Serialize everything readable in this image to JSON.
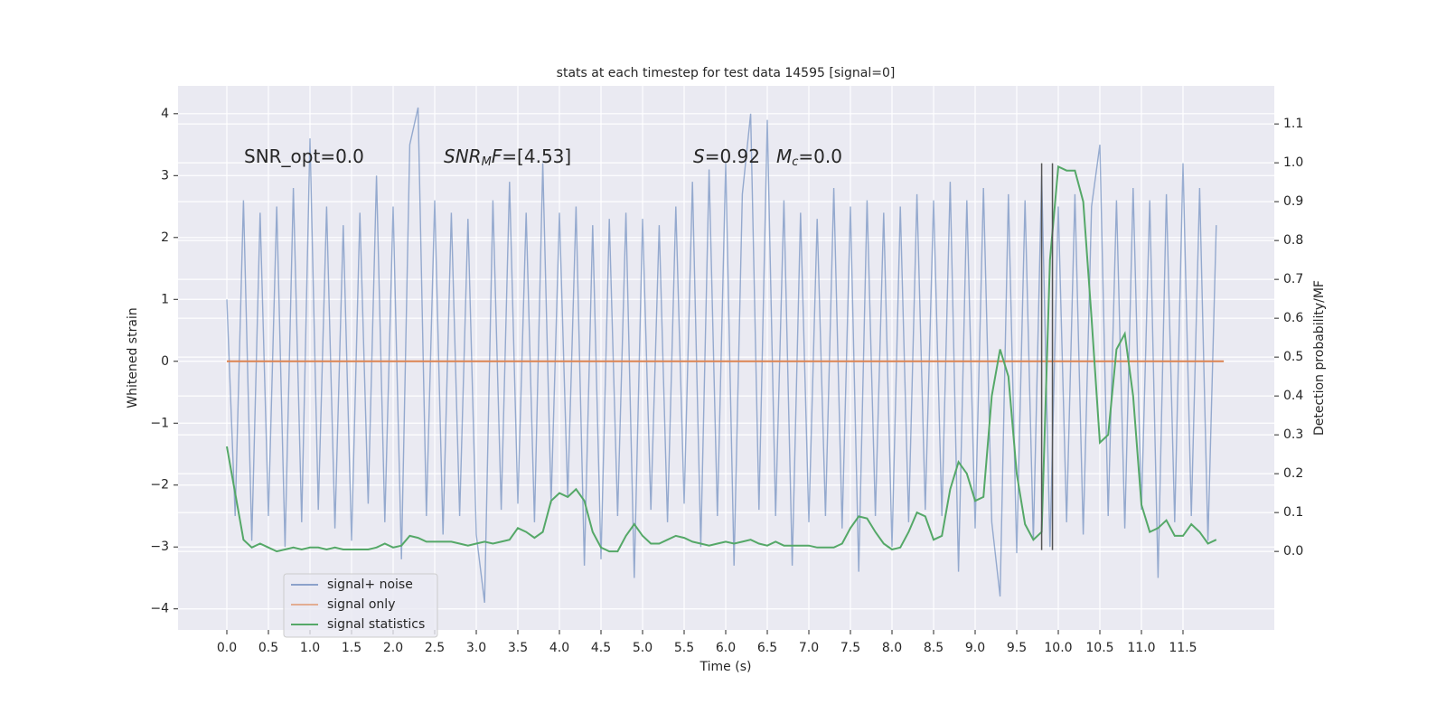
{
  "chart_data": {
    "type": "line",
    "title": "stats at each timestep for test data 14595 [signal=0]",
    "xlabel": "Time (s)",
    "ylabel": "Whitened strain",
    "y2label": "Detection probability/MF",
    "xlim": [
      -0.587,
      12.598
    ],
    "ylim": [
      -4.34,
      4.45
    ],
    "y2lim": [
      -0.202,
      1.198
    ],
    "xticks": [
      {
        "value": 0,
        "label": "0.0"
      },
      0.5,
      {
        "value": 1,
        "label": "1.0"
      },
      1.5,
      {
        "value": 2,
        "label": "2.0"
      },
      2.5,
      {
        "value": 3,
        "label": "3.0"
      },
      3.5,
      {
        "value": 4,
        "label": "4.0"
      },
      4.5,
      {
        "value": 5,
        "label": "5.0"
      },
      5.5,
      {
        "value": 6,
        "label": "6.0"
      },
      6.5,
      {
        "value": 7,
        "label": "7.0"
      },
      7.5,
      {
        "value": 8,
        "label": "8.0"
      },
      8.5,
      {
        "value": 9,
        "label": "9.0"
      },
      9.5,
      {
        "value": 10,
        "label": "10.0"
      },
      10.5,
      {
        "value": 11,
        "label": "11.0"
      },
      11.5
    ],
    "yticks": [
      {
        "value": -4,
        "label": "−4"
      },
      {
        "value": -3,
        "label": "−3"
      },
      {
        "value": -2,
        "label": "−2"
      },
      {
        "value": -1,
        "label": "−1"
      },
      0,
      1,
      2,
      3,
      4
    ],
    "y2ticks": [
      {
        "value": 0,
        "label": "0.0"
      },
      0.1,
      0.2,
      0.3,
      0.4,
      0.5,
      0.6,
      0.7,
      0.8,
      0.9,
      {
        "value": 1,
        "label": "1.0"
      },
      1.1
    ],
    "grid": true,
    "legend": "lower left",
    "annotations": [
      {
        "parts": [
          "SNR_opt=0.0"
        ]
      },
      {
        "parts": [
          "SNR",
          "M",
          "F",
          "=[4.53]"
        ]
      },
      {
        "parts": [
          "S",
          "=0.92"
        ]
      },
      {
        "parts": [
          "M",
          "c",
          "=0.0"
        ]
      }
    ],
    "vlines": [
      {
        "x": 9.8,
        "ymin": -3.05,
        "ymax": 3.2
      },
      {
        "x": 9.93,
        "ymin": -3.05,
        "ymax": 3.2
      }
    ],
    "x": [
      0.0,
      0.1,
      0.2,
      0.3,
      0.4,
      0.5,
      0.6,
      0.7,
      0.8,
      0.9,
      1.0,
      1.1,
      1.2,
      1.3,
      1.4,
      1.5,
      1.6,
      1.7,
      1.8,
      1.9,
      2.0,
      2.1,
      2.2,
      2.3,
      2.4,
      2.5,
      2.6,
      2.7,
      2.8,
      2.9,
      3.0,
      3.1,
      3.2,
      3.3,
      3.4,
      3.5,
      3.6,
      3.7,
      3.8,
      3.9,
      4.0,
      4.1,
      4.2,
      4.3,
      4.4,
      4.5,
      4.6,
      4.7,
      4.8,
      4.9,
      5.0,
      5.1,
      5.2,
      5.3,
      5.4,
      5.5,
      5.6,
      5.7,
      5.8,
      5.9,
      6.0,
      6.1,
      6.2,
      6.3,
      6.4,
      6.5,
      6.6,
      6.7,
      6.8,
      6.9,
      7.0,
      7.1,
      7.2,
      7.3,
      7.4,
      7.5,
      7.6,
      7.7,
      7.8,
      7.9,
      8.0,
      8.1,
      8.2,
      8.3,
      8.4,
      8.5,
      8.6,
      8.7,
      8.8,
      8.9,
      9.0,
      9.1,
      9.2,
      9.3,
      9.4,
      9.5,
      9.6,
      9.7,
      9.8,
      9.9,
      10.0,
      10.1,
      10.2,
      10.3,
      10.4,
      10.5,
      10.6,
      10.7,
      10.8,
      10.9,
      11.0,
      11.1,
      11.2,
      11.3,
      11.4,
      11.5,
      11.6,
      11.7,
      11.8,
      11.9
    ],
    "series": [
      {
        "name": "signal+ noise",
        "color": "#4c72b0",
        "values": [
          1.0,
          -2.5,
          2.6,
          -2.9,
          2.4,
          -2.5,
          2.5,
          -3.0,
          2.8,
          -2.6,
          3.6,
          -2.4,
          2.5,
          -2.7,
          2.2,
          -2.9,
          2.4,
          -2.3,
          3.0,
          -2.6,
          2.5,
          -3.2,
          3.5,
          4.1,
          -2.5,
          2.6,
          -2.8,
          2.4,
          -2.5,
          2.3,
          -2.8,
          -3.9,
          2.6,
          -2.4,
          2.9,
          -2.3,
          2.4,
          -2.6,
          3.2,
          -2.3,
          2.4,
          -2.2,
          2.5,
          -3.3,
          2.2,
          -3.2,
          2.3,
          -2.5,
          2.4,
          -3.5,
          2.3,
          -2.4,
          2.2,
          -2.6,
          2.5,
          -2.3,
          2.9,
          -3.0,
          3.1,
          -2.5,
          3.2,
          -3.3,
          2.7,
          4.0,
          -2.4,
          3.9,
          -2.5,
          2.6,
          -3.3,
          2.4,
          -2.6,
          2.3,
          -2.5,
          2.8,
          -2.7,
          2.5,
          -3.4,
          2.6,
          -2.5,
          2.4,
          -3.0,
          2.5,
          -2.6,
          2.7,
          -2.4,
          2.6,
          -2.5,
          2.9,
          -3.4,
          2.6,
          -2.7,
          2.8,
          -2.6,
          -3.8,
          2.7,
          -3.1,
          2.6,
          -2.9,
          3.0,
          -3.0,
          2.5,
          -2.6,
          2.7,
          -2.8,
          2.5,
          3.5,
          -2.5,
          2.6,
          -2.7,
          2.8,
          -2.4,
          2.6,
          -3.5,
          2.7,
          -2.6,
          3.2,
          -2.5,
          2.8,
          -2.9,
          2.2
        ]
      },
      {
        "name": "signal only",
        "color": "#dd8452",
        "x": [
          0,
          11.99
        ],
        "values": [
          0,
          0
        ]
      },
      {
        "name": "signal statistics",
        "color": "#55a868",
        "axis": "y2",
        "values": [
          0.27,
          0.15,
          0.03,
          0.01,
          0.02,
          0.01,
          0.0,
          0.005,
          0.01,
          0.005,
          0.01,
          0.01,
          0.005,
          0.01,
          0.005,
          0.005,
          0.005,
          0.005,
          0.01,
          0.02,
          0.01,
          0.015,
          0.04,
          0.035,
          0.025,
          0.025,
          0.025,
          0.025,
          0.02,
          0.015,
          0.02,
          0.025,
          0.02,
          0.025,
          0.03,
          0.06,
          0.05,
          0.035,
          0.05,
          0.13,
          0.15,
          0.14,
          0.16,
          0.13,
          0.05,
          0.01,
          0.0,
          0.0,
          0.04,
          0.07,
          0.04,
          0.02,
          0.02,
          0.03,
          0.04,
          0.035,
          0.025,
          0.02,
          0.015,
          0.02,
          0.025,
          0.02,
          0.025,
          0.03,
          0.02,
          0.015,
          0.025,
          0.015,
          0.015,
          0.015,
          0.015,
          0.01,
          0.01,
          0.01,
          0.02,
          0.06,
          0.09,
          0.085,
          0.05,
          0.02,
          0.005,
          0.01,
          0.05,
          0.1,
          0.09,
          0.03,
          0.04,
          0.16,
          0.23,
          0.2,
          0.13,
          0.14,
          0.4,
          0.52,
          0.45,
          0.2,
          0.07,
          0.03,
          0.05,
          0.75,
          0.99,
          0.98,
          0.98,
          0.9,
          0.6,
          0.28,
          0.3,
          0.52,
          0.56,
          0.4,
          0.12,
          0.05,
          0.06,
          0.08,
          0.04,
          0.04,
          0.07,
          0.05,
          0.02,
          0.03
        ]
      }
    ]
  }
}
